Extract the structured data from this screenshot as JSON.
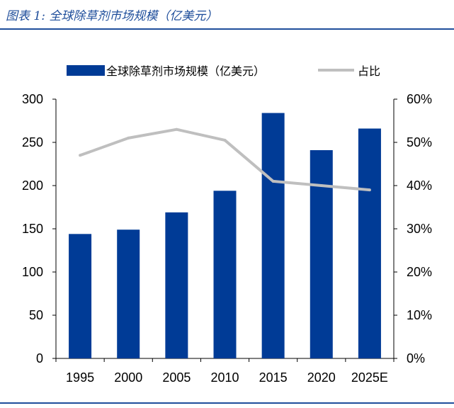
{
  "figure": {
    "caption": "图表 1:  全球除草剂市场规模（亿美元）"
  },
  "colors": {
    "bar": "#003b96",
    "line": "#bfbfbf",
    "rule": "#1f4e9b"
  },
  "chart_data": {
    "type": "bar",
    "title": "",
    "xlabel": "",
    "ylabel": "",
    "categories": [
      "1995",
      "2000",
      "2005",
      "2010",
      "2015",
      "2020",
      "2025E"
    ],
    "series": [
      {
        "name": "全球除草剂市场规模（亿美元）",
        "type": "bar",
        "axis": "left",
        "values": [
          144,
          149,
          169,
          194,
          284,
          241,
          266
        ]
      },
      {
        "name": "占比",
        "type": "line",
        "axis": "right",
        "values": [
          47,
          51,
          53,
          50.5,
          41,
          40,
          39
        ]
      }
    ],
    "ylim": [
      0,
      300
    ],
    "yticks": [
      "0",
      "50",
      "100",
      "150",
      "200",
      "250",
      "300"
    ],
    "y2lim": [
      0,
      60
    ],
    "y2ticks": [
      "0%",
      "10%",
      "20%",
      "30%",
      "40%",
      "50%",
      "60%"
    ],
    "grid": false,
    "legend": "top"
  }
}
